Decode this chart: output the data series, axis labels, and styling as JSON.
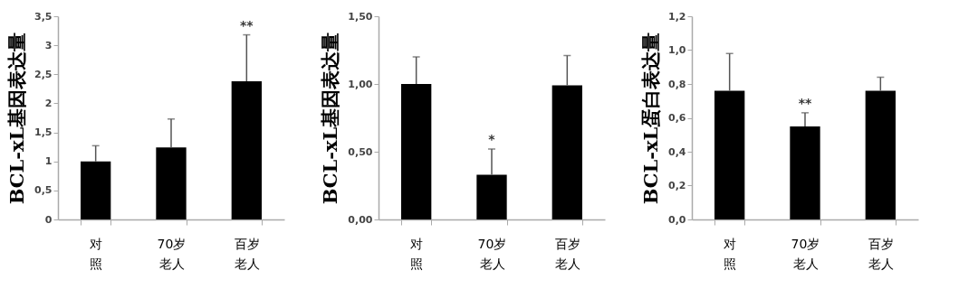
{
  "chart_data": [
    {
      "type": "bar",
      "ylabel": "BCL-xL基因表达量",
      "categories": [
        "对照",
        "70岁老人",
        "百岁老人"
      ],
      "values": [
        1.0,
        1.24,
        2.38
      ],
      "color": "#000000",
      "errors": [
        [
          1.0,
          1.27
        ],
        [
          1.24,
          1.73
        ],
        [
          2.38,
          3.18
        ]
      ],
      "ylim": [
        0,
        3.5
      ],
      "yticks": [
        0,
        {
          "value": 0.5,
          "label": "0,5"
        },
        1,
        {
          "value": 1.5,
          "label": "1,5"
        },
        2,
        {
          "value": 2.5,
          "label": "2,5"
        },
        3,
        {
          "value": 3.5,
          "label": "3,5"
        }
      ],
      "grid": false,
      "annotations": [
        {
          "text": "**",
          "x": "百岁老人",
          "y": 3.18
        }
      ]
    },
    {
      "type": "bar",
      "ylabel": "BCL-xL基因表达量",
      "categories": [
        "对照",
        "70岁老人",
        "百岁老人"
      ],
      "values": [
        1.0,
        0.33,
        0.99
      ],
      "color": "#000000",
      "errors": [
        [
          1.0,
          1.2
        ],
        [
          0.33,
          0.52
        ],
        [
          0.99,
          1.21
        ]
      ],
      "ylim": [
        0,
        1.5
      ],
      "yticks": [
        {
          "value": 0,
          "label": "0,00"
        },
        {
          "value": 0.5,
          "label": "0,50"
        },
        {
          "value": 1,
          "label": "1,00"
        },
        {
          "value": 1.5,
          "label": "1,50"
        }
      ],
      "grid": false,
      "annotations": [
        {
          "text": "*",
          "x": "70岁老人",
          "y": 0.52
        }
      ]
    },
    {
      "type": "bar",
      "ylabel": "BCL-xL蛋白表达量",
      "categories": [
        "对照",
        "70岁老人",
        "百岁老人"
      ],
      "values": [
        0.76,
        0.55,
        0.76
      ],
      "color": "#000000",
      "errors": [
        [
          0.76,
          0.98
        ],
        [
          0.55,
          0.63
        ],
        [
          0.76,
          0.84
        ]
      ],
      "ylim": [
        0,
        1.2
      ],
      "yticks": [
        {
          "value": 0,
          "label": "0,0"
        },
        {
          "value": 0.2,
          "label": "0,2"
        },
        {
          "value": 0.4,
          "label": "0,4"
        },
        {
          "value": 0.6,
          "label": "0,6"
        },
        {
          "value": 0.8,
          "label": "0,8"
        },
        {
          "value": 1,
          "label": "1,0"
        },
        {
          "value": 1.2,
          "label": "1,2"
        }
      ],
      "grid": false,
      "annotations": [
        {
          "text": "**",
          "x": "70岁老人",
          "y": 0.63
        }
      ]
    }
  ]
}
